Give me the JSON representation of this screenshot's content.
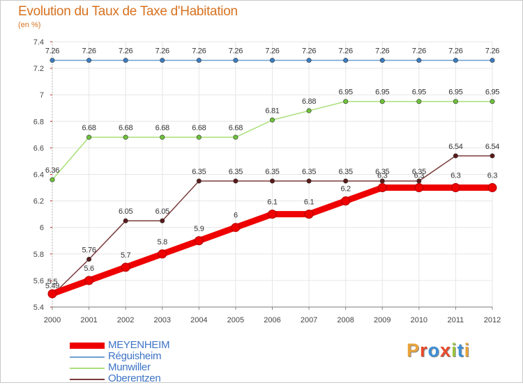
{
  "title": "Evolution du Taux de Taxe d'Habitation",
  "subtitle": "(en %)",
  "logo": {
    "text": "Proxiti",
    "colors": [
      "#e8a33a",
      "#e84b2b",
      "#3d8fd6",
      "#e84b2b",
      "#9bc53d",
      "#3d8fd6",
      "#e8a33a"
    ]
  },
  "chart_data": {
    "type": "line",
    "x": [
      "2000",
      "2001",
      "2002",
      "2003",
      "2004",
      "2005",
      "2006",
      "2007",
      "2008",
      "2009",
      "2010",
      "2011",
      "2012"
    ],
    "ylim": [
      5.4,
      7.4
    ],
    "yticks": [
      "5.4",
      "5.6",
      "5.8",
      "6",
      "6.2",
      "6.4",
      "6.6",
      "6.8",
      "7",
      "7.2",
      "7.4"
    ],
    "grid": true,
    "legend_position": "bottom-left",
    "series": [
      {
        "name": "Réguisheim",
        "color": "#6f9fd0",
        "marker": "#3b7ec2",
        "values": [
          7.26,
          7.26,
          7.26,
          7.26,
          7.26,
          7.26,
          7.26,
          7.26,
          7.26,
          7.26,
          7.26,
          7.26,
          7.26
        ],
        "labels": [
          "7.26",
          "7.26",
          "7.26",
          "7.26",
          "7.26",
          "7.26",
          "7.26",
          "7.26",
          "7.26",
          "7.26",
          "7.26",
          "7.26",
          "7.26"
        ]
      },
      {
        "name": "Munwiller",
        "color": "#a9e07a",
        "marker": "#6dc23a",
        "values": [
          6.36,
          6.68,
          6.68,
          6.68,
          6.68,
          6.68,
          6.81,
          6.88,
          6.95,
          6.95,
          6.95,
          6.95,
          6.95
        ],
        "labels": [
          "6.36",
          "6.68",
          "6.68",
          "6.68",
          "6.68",
          "6.68",
          "6.81",
          "6.88",
          "6.95",
          "6.95",
          "6.95",
          "6.95",
          "6.95"
        ]
      },
      {
        "name": "Oberentzen",
        "color": "#7a3a3a",
        "marker": "#5a1a1a",
        "values": [
          5.49,
          5.76,
          6.05,
          6.05,
          6.35,
          6.35,
          6.35,
          6.35,
          6.35,
          6.35,
          6.35,
          6.54,
          6.54
        ],
        "labels": [
          "5.49",
          "5.76",
          "6.05",
          "6.05",
          "6.35",
          "6.35",
          "6.35",
          "6.35",
          "6.35",
          "6.35",
          "6.35",
          "6.54",
          "6.54"
        ]
      },
      {
        "name": "MEYENHEIM",
        "color": "#ee0000",
        "marker": "#ee0000",
        "thick": true,
        "values": [
          5.5,
          5.6,
          5.7,
          5.8,
          5.9,
          6.0,
          6.1,
          6.1,
          6.2,
          6.3,
          6.3,
          6.3,
          6.3
        ],
        "labels": [
          "5.5",
          "5.6",
          "5.7",
          "5.8",
          "5.9",
          "6",
          "6.1",
          "6.1",
          "6.2",
          "6.3",
          "6.3",
          "6.3",
          "6.3"
        ]
      }
    ],
    "legend": [
      {
        "name": "MEYENHEIM",
        "color": "#ee0000",
        "thick": true
      },
      {
        "name": "Réguisheim",
        "color": "#6f9fd0"
      },
      {
        "name": "Munwiller",
        "color": "#a9e07a"
      },
      {
        "name": "Oberentzen",
        "color": "#7a3a3a"
      }
    ]
  }
}
